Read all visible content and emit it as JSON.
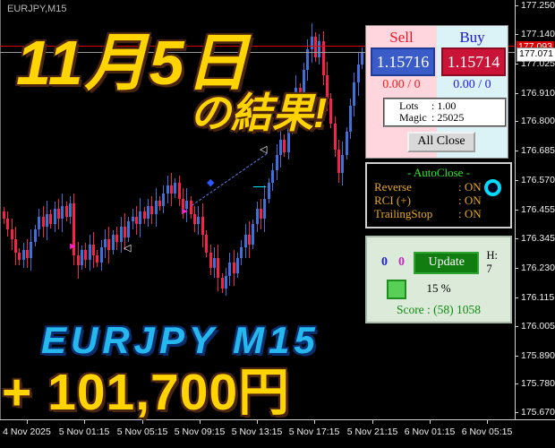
{
  "window": {
    "symbol_label": "EURJPY,M15"
  },
  "overlay": {
    "date_text": "11月5日",
    "result_text": "の結果!",
    "symbol_text": "EURJPY M15",
    "profit_text": "+ 101,700円",
    "gold_color": "#ffd400",
    "cyan_color": "#25b8ef"
  },
  "trade_panel": {
    "sell_label": "Sell",
    "buy_label": "Buy",
    "sell_price": "1.15716",
    "buy_price": "1.15714",
    "sell_count": "0.00 / 0",
    "buy_count": "0.00 / 0",
    "lots_label": "Lots",
    "lots_value": ": 1.00",
    "magic_label": "Magic",
    "magic_value": ": 25025",
    "all_close_label": "All Close"
  },
  "autoclose_panel": {
    "title": "- AutoClose -",
    "rows": [
      {
        "label": "Reverse",
        "value": ": ON"
      },
      {
        "label": "RCI (+)",
        "value": ": ON"
      },
      {
        "label": "TrailingStop",
        "value": ": ON"
      }
    ]
  },
  "stats_panel": {
    "left_count": "0",
    "right_count": "0",
    "update_label": "Update",
    "h_label": "H: 7",
    "percent": "15 %",
    "score": "Score : (58) 1058"
  },
  "price_axis": {
    "labels": [
      "177.250",
      "177.140",
      "177.025",
      "176.910",
      "176.800",
      "176.685",
      "176.570",
      "176.455",
      "176.345",
      "176.230",
      "176.115",
      "176.005",
      "175.890",
      "175.780",
      "175.670"
    ],
    "ask_value": "177.093",
    "bid_value": "177.071"
  },
  "time_axis": {
    "labels": [
      "4 Nov 2025",
      "5 Nov 01:15",
      "5 Nov 05:15",
      "5 Nov 09:15",
      "5 Nov 13:15",
      "5 Nov 17:15",
      "5 Nov 21:15",
      "6 Nov 01:15",
      "6 Nov 05:15"
    ]
  },
  "chart_data": {
    "type": "candlestick",
    "symbol": "EURJPY",
    "timeframe": "M15",
    "up_color": "#3f6fd8",
    "down_color": "#f5224a",
    "current_bid": 177.071,
    "current_ask_line": 177.093,
    "bid_line_color": "#9a9a9a",
    "ask_line_color": "#dd0000",
    "price_range_shown": [
      175.67,
      177.25
    ],
    "first_open": 176.45,
    "closes": [
      176.42,
      176.38,
      176.34,
      176.29,
      176.26,
      176.3,
      176.27,
      176.33,
      176.38,
      176.43,
      176.39,
      176.44,
      176.4,
      176.46,
      176.42,
      176.47,
      176.43,
      176.48,
      176.28,
      176.24,
      176.3,
      176.26,
      176.32,
      176.28,
      176.25,
      176.31,
      176.34,
      176.3,
      176.36,
      176.33,
      176.39,
      176.35,
      176.41,
      176.43,
      176.4,
      176.45,
      176.42,
      176.47,
      176.44,
      176.49,
      176.47,
      176.52,
      176.55,
      176.52,
      176.56,
      176.5,
      176.46,
      176.49,
      176.44,
      176.4,
      176.43,
      176.36,
      176.29,
      176.23,
      176.27,
      176.19,
      176.15,
      176.2,
      176.25,
      176.21,
      176.27,
      176.31,
      176.36,
      176.32,
      176.4,
      176.46,
      176.42,
      176.5,
      176.56,
      176.61,
      176.67,
      176.73,
      176.68,
      176.79,
      176.86,
      176.93,
      176.88,
      177.0,
      177.08,
      177.13,
      177.05,
      177.11,
      176.98,
      176.89,
      176.79,
      176.69,
      176.6,
      176.67,
      176.76,
      176.86,
      176.95,
      177.02,
      177.071
    ],
    "markers": {
      "sell_arrows": [
        [
          76,
          270
        ],
        [
          201,
          231
        ]
      ],
      "white_triangles": [
        [
          138,
          272
        ],
        [
          290,
          162
        ]
      ],
      "blue_diamonds": [
        [
          231,
          199
        ]
      ],
      "trendline": [
        [
          214,
          229
        ],
        [
          298,
          171
        ]
      ],
      "cyan_tick": [
        [
          283,
          208
        ],
        [
          297,
          208
        ]
      ]
    }
  }
}
